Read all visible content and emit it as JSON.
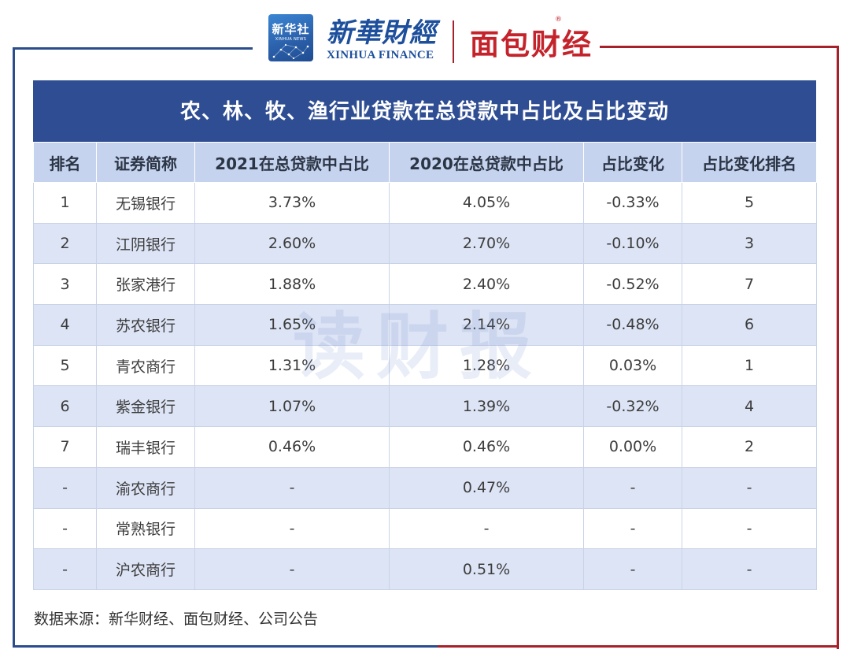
{
  "header": {
    "xinhuashe_cn": "新华社",
    "xinhuashe_en": "XINHUA NEWS",
    "xinhua_finance_cn": "新華財經",
    "xinhua_finance_en": "XINHUA FINANCE",
    "mianbao": "面包财经",
    "registered_mark": "®"
  },
  "table": {
    "title": "农、林、牧、渔行业贷款在总贷款中占比及占比变动",
    "columns": [
      "排名",
      "证券简称",
      "2021在总贷款中占比",
      "2020在总贷款中占比",
      "占比变化",
      "占比变化排名"
    ],
    "rows": [
      [
        "1",
        "无锡银行",
        "3.73%",
        "4.05%",
        "-0.33%",
        "5"
      ],
      [
        "2",
        "江阴银行",
        "2.60%",
        "2.70%",
        "-0.10%",
        "3"
      ],
      [
        "3",
        "张家港行",
        "1.88%",
        "2.40%",
        "-0.52%",
        "7"
      ],
      [
        "4",
        "苏农银行",
        "1.65%",
        "2.14%",
        "-0.48%",
        "6"
      ],
      [
        "5",
        "青农商行",
        "1.31%",
        "1.28%",
        "0.03%",
        "1"
      ],
      [
        "6",
        "紫金银行",
        "1.07%",
        "1.39%",
        "-0.32%",
        "4"
      ],
      [
        "7",
        "瑞丰银行",
        "0.46%",
        "0.46%",
        "0.00%",
        "2"
      ],
      [
        "-",
        "渝农商行",
        "-",
        "0.47%",
        "-",
        "-"
      ],
      [
        "-",
        "常熟银行",
        "-",
        "-",
        "-",
        "-"
      ],
      [
        "-",
        "沪农商行",
        "-",
        "0.51%",
        "-",
        "-"
      ]
    ]
  },
  "watermark": "读财报",
  "source": "数据来源：新华财经、面包财经、公司公告",
  "colors": {
    "title_bg": "#2f4d92",
    "header_bg": "#c6d3ee",
    "stripe_bg": "#dde4f5",
    "frame_blue": "#2b4d8c",
    "frame_red": "#a6222a"
  }
}
